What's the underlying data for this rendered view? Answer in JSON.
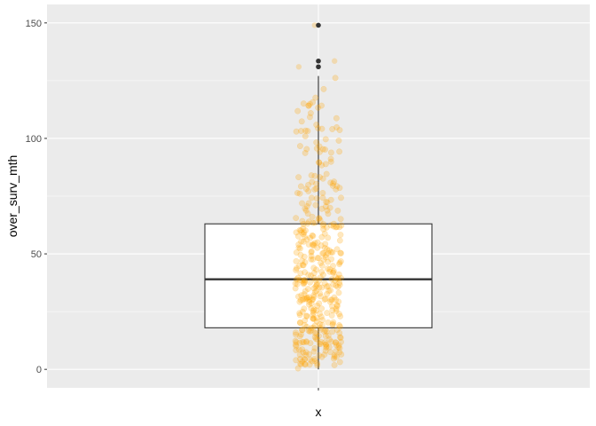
{
  "chart_data": {
    "type": "boxplot",
    "title": "",
    "xlabel": "x",
    "ylabel": "over_surv_mth",
    "ylim": [
      -8,
      158
    ],
    "y_ticks": [
      0,
      50,
      100,
      150
    ],
    "y_tick_labels": [
      "0",
      "50",
      "100",
      "150"
    ],
    "x_categories": [
      ""
    ],
    "grid": true,
    "legend": "none",
    "colors": {
      "panel_background": "#ebebeb",
      "grid_major": "#ffffff",
      "box_fill": "#ffffff",
      "box_outline": "#333333",
      "jitter_points": "#ffa500",
      "outlier_points": "#333333"
    },
    "box": {
      "min": 0,
      "q1": 18,
      "median": 39,
      "q3": 63,
      "max": 127,
      "outliers": [
        131,
        133.5,
        149
      ]
    },
    "jitter_point_count": 420,
    "jitter_point_alpha": 0.25
  }
}
